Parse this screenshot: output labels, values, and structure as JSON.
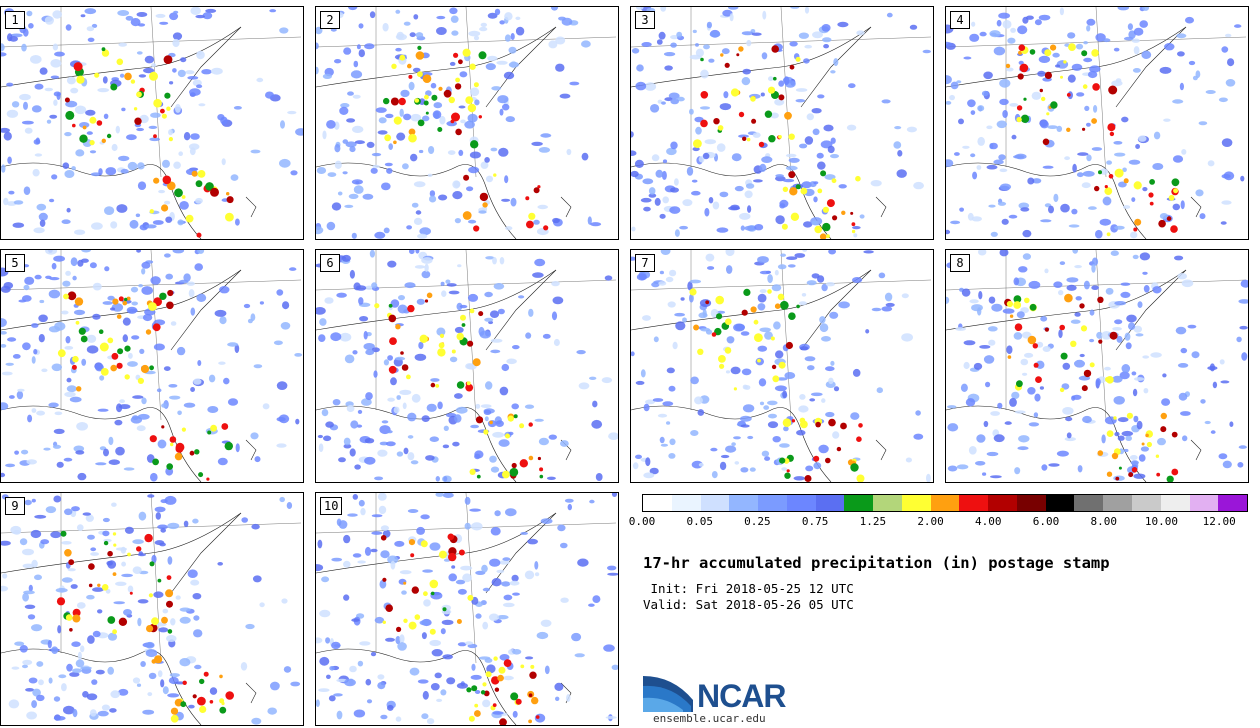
{
  "panels": [
    {
      "label": "1"
    },
    {
      "label": "2"
    },
    {
      "label": "3"
    },
    {
      "label": "4"
    },
    {
      "label": "5"
    },
    {
      "label": "6"
    },
    {
      "label": "7"
    },
    {
      "label": "8"
    },
    {
      "label": "9"
    },
    {
      "label": "10"
    }
  ],
  "colorbar": {
    "colors": [
      "#ffffff",
      "#eaf4ff",
      "#cfe0ff",
      "#93b6ff",
      "#7b9bff",
      "#6c86ff",
      "#5b6ff2",
      "#0a9a1a",
      "#b3d67a",
      "#ffff33",
      "#ffa010",
      "#ee1010",
      "#b20000",
      "#780000",
      "#000000",
      "#707070",
      "#a0a0a0",
      "#cacaca",
      "#eeeeee",
      "#e2b0f2",
      "#9a16d8"
    ],
    "labels": [
      "0.00",
      "0.05",
      "0.25",
      "0.75",
      "1.25",
      "2.00",
      "4.00",
      "6.00",
      "8.00",
      "10.00",
      "12.00"
    ]
  },
  "title": "17-hr accumulated precipitation (in) postage stamp",
  "init": " Init: Fri 2018-05-25 12 UTC",
  "valid": "Valid: Sat 2018-05-26 05 UTC",
  "logo": {
    "text": "NCAR",
    "site": "ensemble.ucar.edu",
    "color": "#1e4f8f"
  }
}
